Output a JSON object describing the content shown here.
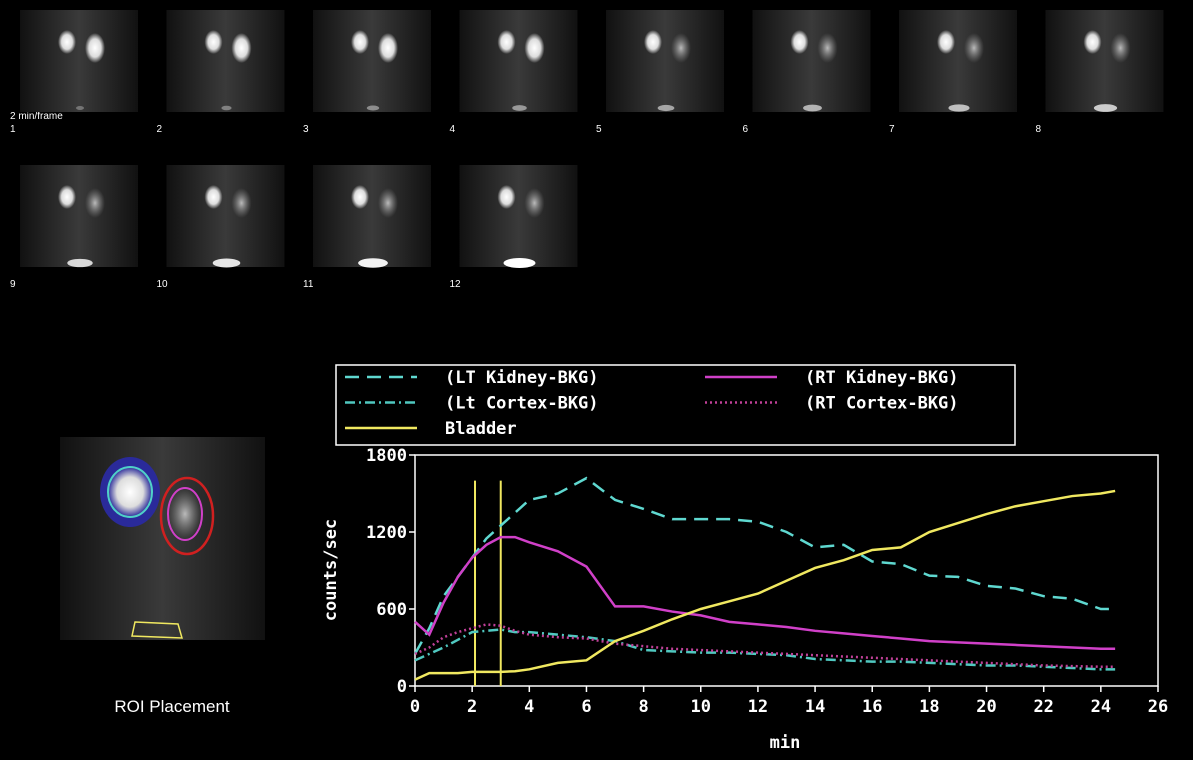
{
  "frame_note": "2 min/frame",
  "frames": [
    "1",
    "2",
    "3",
    "4",
    "5",
    "6",
    "7",
    "8",
    "9",
    "10",
    "11",
    "12"
  ],
  "roi_caption": "ROI Placement",
  "chart_data": {
    "type": "line",
    "x_label": "min",
    "y_label": "counts/sec",
    "x": [
      0,
      0.5,
      1,
      1.5,
      2,
      2.5,
      3,
      3.5,
      4,
      5,
      6,
      7,
      8,
      9,
      10,
      11,
      12,
      13,
      14,
      15,
      16,
      17,
      18,
      19,
      20,
      21,
      22,
      23,
      24,
      24.5
    ],
    "series": [
      {
        "name": "(LT Kidney-BKG)",
        "color": "#5fd8d0",
        "style": "dashed",
        "values": [
          250,
          450,
          700,
          850,
          1000,
          1150,
          1250,
          1350,
          1450,
          1500,
          1620,
          1450,
          1380,
          1300,
          1300,
          1300,
          1280,
          1200,
          1080,
          1100,
          970,
          950,
          860,
          850,
          780,
          760,
          700,
          680,
          600,
          600
        ]
      },
      {
        "name": "(RT Kidney-BKG)",
        "color": "#d040c8",
        "style": "solid",
        "values": [
          500,
          400,
          650,
          850,
          1000,
          1100,
          1160,
          1160,
          1120,
          1050,
          930,
          620,
          620,
          580,
          550,
          500,
          480,
          460,
          430,
          410,
          390,
          370,
          350,
          340,
          330,
          320,
          310,
          300,
          290,
          290
        ]
      },
      {
        "name": "(Lt Cortex-BKG)",
        "color": "#50c8c0",
        "style": "dashdot",
        "values": [
          200,
          250,
          300,
          360,
          420,
          430,
          440,
          420,
          420,
          400,
          380,
          350,
          280,
          270,
          260,
          260,
          250,
          240,
          210,
          200,
          190,
          190,
          180,
          170,
          160,
          160,
          150,
          140,
          130,
          130
        ]
      },
      {
        "name": "(RT Cortex-BKG)",
        "color": "#c04098",
        "style": "dotted",
        "values": [
          250,
          300,
          380,
          420,
          450,
          480,
          470,
          430,
          400,
          380,
          370,
          330,
          310,
          290,
          280,
          270,
          260,
          250,
          240,
          230,
          220,
          210,
          200,
          190,
          180,
          170,
          160,
          155,
          150,
          150
        ]
      },
      {
        "name": "Bladder",
        "color": "#f0e860",
        "style": "solid",
        "values": [
          50,
          100,
          100,
          100,
          110,
          110,
          110,
          115,
          130,
          180,
          200,
          350,
          430,
          520,
          600,
          660,
          720,
          820,
          920,
          980,
          1060,
          1080,
          1200,
          1270,
          1340,
          1400,
          1440,
          1480,
          1500,
          1520
        ]
      }
    ],
    "markers": [
      2.1,
      3.0
    ],
    "marker_color": "#f0e860",
    "xlim": [
      0,
      26
    ],
    "xticks": [
      0,
      2,
      4,
      6,
      8,
      10,
      12,
      14,
      16,
      18,
      20,
      22,
      24,
      26
    ],
    "ylim": [
      0,
      1800
    ],
    "yticks": [
      0,
      600,
      1200,
      1800
    ]
  }
}
